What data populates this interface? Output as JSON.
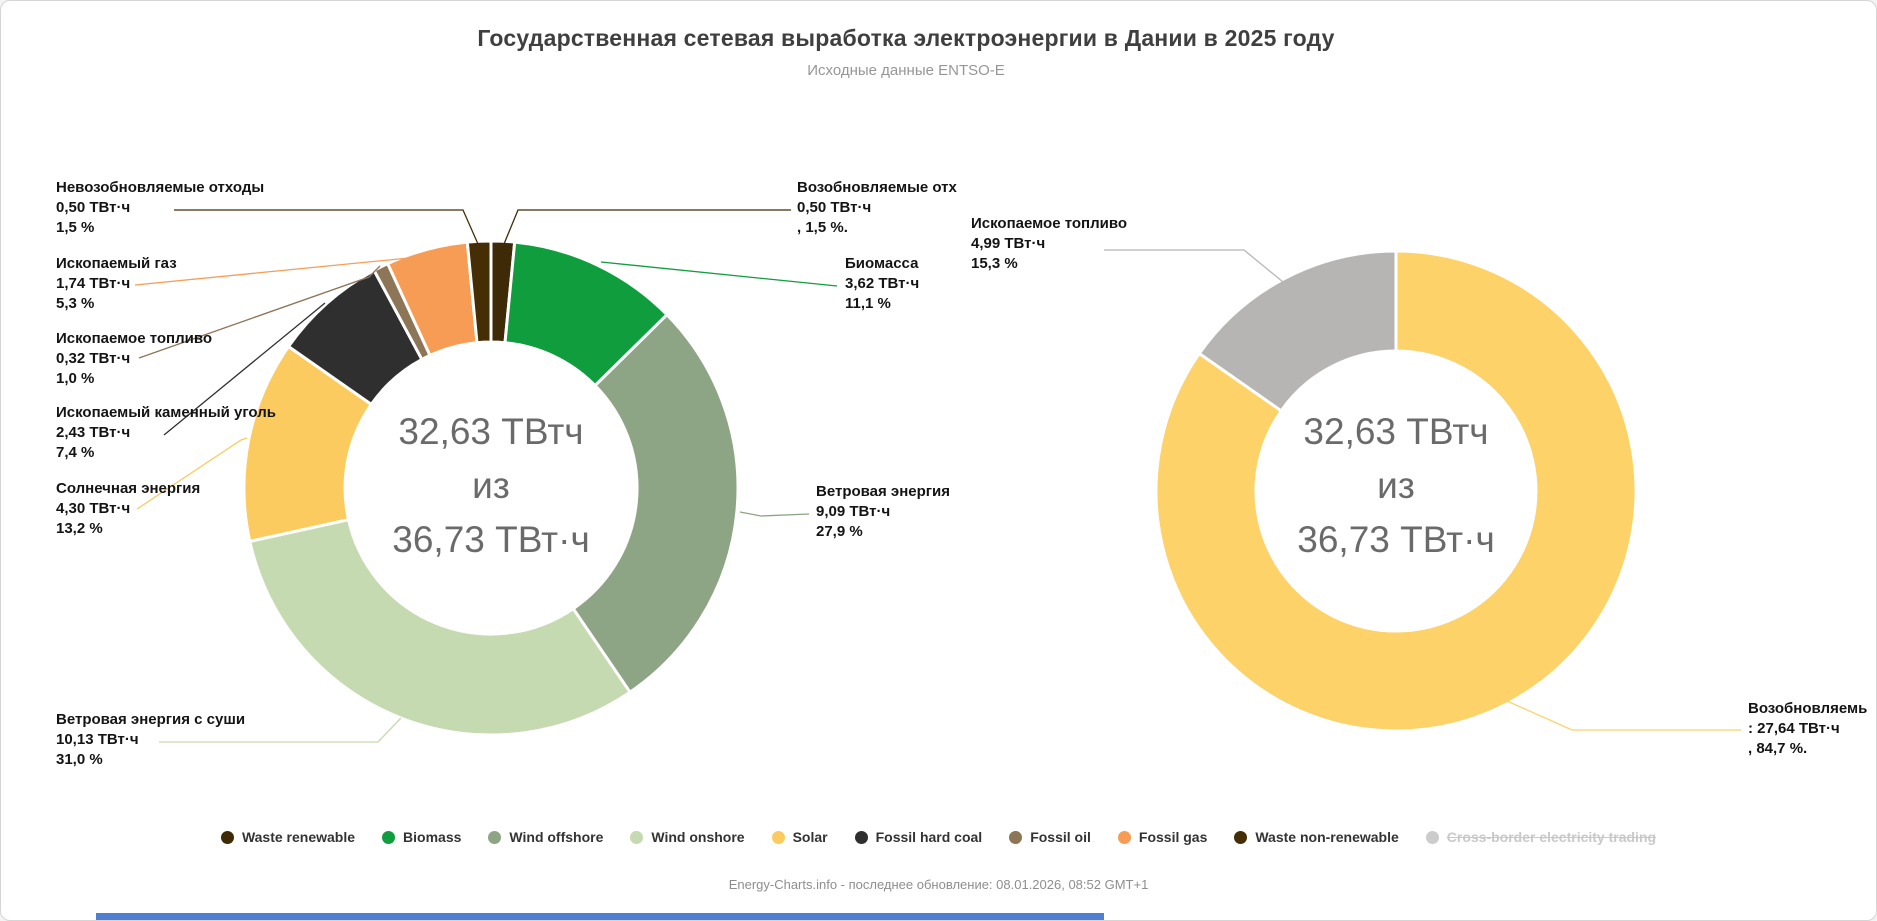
{
  "header": {
    "title": "Государственная сетевая выработка электроэнергии в Дании в 2025 году",
    "subtitle": "Исходные данные ENTSO-E"
  },
  "chart_data": [
    {
      "type": "pie",
      "subtype": "donut",
      "title": "Выработка по источникам",
      "units": "ТВт·ч",
      "center_text": [
        "32,63 ТВтч",
        "из",
        "36,73 ТВт·ч"
      ],
      "total_twh": 32.63,
      "reference_total_twh": 36.73,
      "legend_position": "bottom",
      "segments": [
        {
          "key": "waste-renewable",
          "name": "Возобновляемые отходы",
          "value": 0.5,
          "percent": 1.5,
          "color": "#3e2a06"
        },
        {
          "key": "biomass",
          "name": "Биомасса",
          "value": 3.62,
          "percent": 11.1,
          "color": "#0f9d3e"
        },
        {
          "key": "wind-offshore",
          "name": "Ветровая энергия",
          "value": 9.09,
          "percent": 27.9,
          "color": "#8da584"
        },
        {
          "key": "wind-onshore",
          "name": "Ветровая энергия с суши",
          "value": 10.13,
          "percent": 31.0,
          "color": "#c5dab0"
        },
        {
          "key": "solar",
          "name": "Солнечная энергия",
          "value": 4.3,
          "percent": 13.2,
          "color": "#fbcb5f"
        },
        {
          "key": "fossil-hard-coal",
          "name": "Ископаемый каменный уголь",
          "value": 2.43,
          "percent": 7.4,
          "color": "#2f2f2f"
        },
        {
          "key": "fossil-oil",
          "name": "Ископаемое топливо",
          "value": 0.32,
          "percent": 1.0,
          "color": "#8d7557"
        },
        {
          "key": "fossil-gas",
          "name": "Ископаемый газ",
          "value": 1.74,
          "percent": 5.3,
          "color": "#f79c54"
        },
        {
          "key": "waste-non-renewable",
          "name": "Невозобновляемые отходы",
          "value": 0.5,
          "percent": 1.5,
          "color": "#452e05"
        }
      ]
    },
    {
      "type": "pie",
      "subtype": "donut",
      "title": "Возобновляемые и ископаемые",
      "units": "ТВт·ч",
      "center_text": [
        "32,63 ТВтч",
        "из",
        "36,73 ТВт·ч"
      ],
      "total_twh": 32.63,
      "reference_total_twh": 36.73,
      "segments": [
        {
          "key": "renewables",
          "name": "Возобновляемые",
          "value": 27.64,
          "percent": 84.7,
          "color": "#fcd269"
        },
        {
          "key": "fossil",
          "name": "Ископаемое топливо",
          "value": 4.99,
          "percent": 15.3,
          "color": "#b6b5b3"
        }
      ]
    }
  ],
  "callouts": [
    {
      "title": "Невозобновляемые отходы",
      "value": "0,50 ТВт·ч",
      "percent": "1,5 %"
    },
    {
      "title": "Ископаемый газ",
      "value": "1,74 ТВт·ч",
      "percent": "5,3 %"
    },
    {
      "title": "Ископаемое топливо",
      "value": "0,32 ТВт·ч",
      "percent": "1,0 %"
    },
    {
      "title": "Ископаемый каменный уголь",
      "value": "2,43 ТВт·ч",
      "percent": "7,4 %"
    },
    {
      "title": "Солнечная энергия",
      "value": "4,30 ТВт·ч",
      "percent": "13,2 %"
    },
    {
      "title": "Ветровая энергия с суши",
      "value": "10,13 ТВт·ч",
      "percent": "31,0 %"
    },
    {
      "title": "Возобновляемые отх",
      "value": "0,50 ТВт·ч",
      "percent": ", 1,5 %."
    },
    {
      "title": "Биомасса",
      "value": "3,62 ТВт·ч",
      "percent": "11,1 %"
    },
    {
      "title": "Ветровая энергия",
      "value": "9,09 ТВт·ч",
      "percent": "27,9 %"
    },
    {
      "title": "Ископаемое топливо",
      "value": "4,99 ТВт·ч",
      "percent": "15,3 %"
    },
    {
      "title": "Возобновляемь",
      "value": ": 27,64 ТВт·ч",
      "percent": ", 84,7 %."
    }
  ],
  "legend": {
    "items": [
      {
        "label": "Waste renewable",
        "color": "#3e2a06",
        "enabled": true
      },
      {
        "label": "Biomass",
        "color": "#0f9d3e",
        "enabled": true
      },
      {
        "label": "Wind offshore",
        "color": "#8da584",
        "enabled": true
      },
      {
        "label": "Wind onshore",
        "color": "#c5dab0",
        "enabled": true
      },
      {
        "label": "Solar",
        "color": "#fbcb5f",
        "enabled": true
      },
      {
        "label": "Fossil hard coal",
        "color": "#2f2f2f",
        "enabled": true
      },
      {
        "label": "Fossil oil",
        "color": "#8d7557",
        "enabled": true
      },
      {
        "label": "Fossil gas",
        "color": "#f79c54",
        "enabled": true
      },
      {
        "label": "Waste non-renewable",
        "color": "#452e05",
        "enabled": true
      },
      {
        "label": "Cross-border electricity trading",
        "color": "#cccccc",
        "enabled": false
      }
    ]
  },
  "footer": {
    "text": "Energy-Charts.info - последнее обновление: 08.01.2026, 08:52 GMT+1"
  }
}
